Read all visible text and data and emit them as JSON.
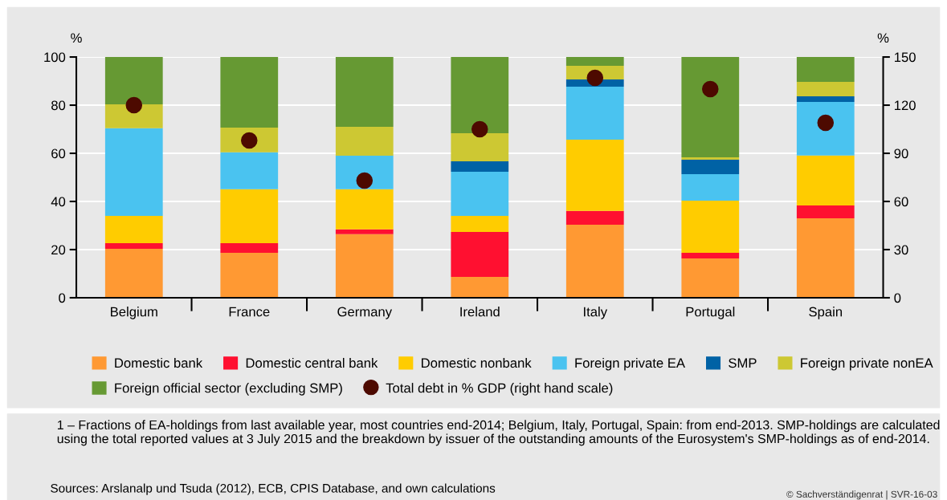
{
  "chart_data": {
    "type": "bar",
    "stacked": true,
    "categories": [
      "Belgium",
      "France",
      "Germany",
      "Ireland",
      "Italy",
      "Portugal",
      "Spain"
    ],
    "ylabel": "%",
    "y2label": "%",
    "ylim": [
      0,
      100
    ],
    "yticks": [
      0,
      20,
      40,
      60,
      80,
      100
    ],
    "y2lim": [
      0,
      150
    ],
    "y2ticks": [
      0,
      30,
      60,
      90,
      120,
      150
    ],
    "grid": "y",
    "legend": "bottom",
    "series": [
      {
        "name": "Domestic bank",
        "color": "#ff9933",
        "values": [
          20.3,
          18.7,
          26.4,
          8.7,
          30.3,
          16.3,
          33
        ]
      },
      {
        "name": "Domestic central bank",
        "color": "#ff1030",
        "values": [
          2.4,
          4,
          2,
          18.6,
          5.8,
          2.4,
          5.3
        ]
      },
      {
        "name": "Domestic nonbank",
        "color": "#ffcc00",
        "values": [
          11.3,
          22.4,
          16.7,
          6.7,
          29.6,
          21.6,
          20.8
        ]
      },
      {
        "name": "Foreign private EA",
        "color": "#4ac3f0",
        "values": [
          36.4,
          15.3,
          13.9,
          18.3,
          22,
          11,
          22.2
        ]
      },
      {
        "name": "SMP",
        "color": "#0062a5",
        "values": [
          0,
          0,
          0,
          4.4,
          3,
          6,
          2.4
        ]
      },
      {
        "name": "Foreign private nonEA",
        "color": "#cdc833",
        "values": [
          9.9,
          10.3,
          12,
          11.6,
          5.6,
          1,
          6
        ]
      },
      {
        "name": "Foreign official sector (excluding SMP)",
        "color": "#669933",
        "values": [
          19.7,
          29.3,
          29,
          31.7,
          3.7,
          41.7,
          10.3
        ]
      },
      {
        "name": "Total debt in % GDP (right hand scale)",
        "type": "scatter",
        "axis": "y2",
        "marker": "circle",
        "color": "#4d0a00",
        "values": [
          120,
          98,
          73,
          105,
          137,
          130,
          109
        ]
      }
    ],
    "annotations": [
      "1 – Fractions of EA-holdings from last available year, most countries end-2014; Belgium, Italy, Portugal, Spain: from end-2013. SMP-holdings are calculated using the total reported values at 3 July 2015 and the breakdown by issuer of the outstanding amounts of the Eurosystem's SMP-holdings as of end-2014.",
      "Sources: Arslanalp und Tsuda (2012), ECB, CPIS Database, and own calculations",
      "© Sachverständigenrat | SVR-16-03"
    ]
  }
}
